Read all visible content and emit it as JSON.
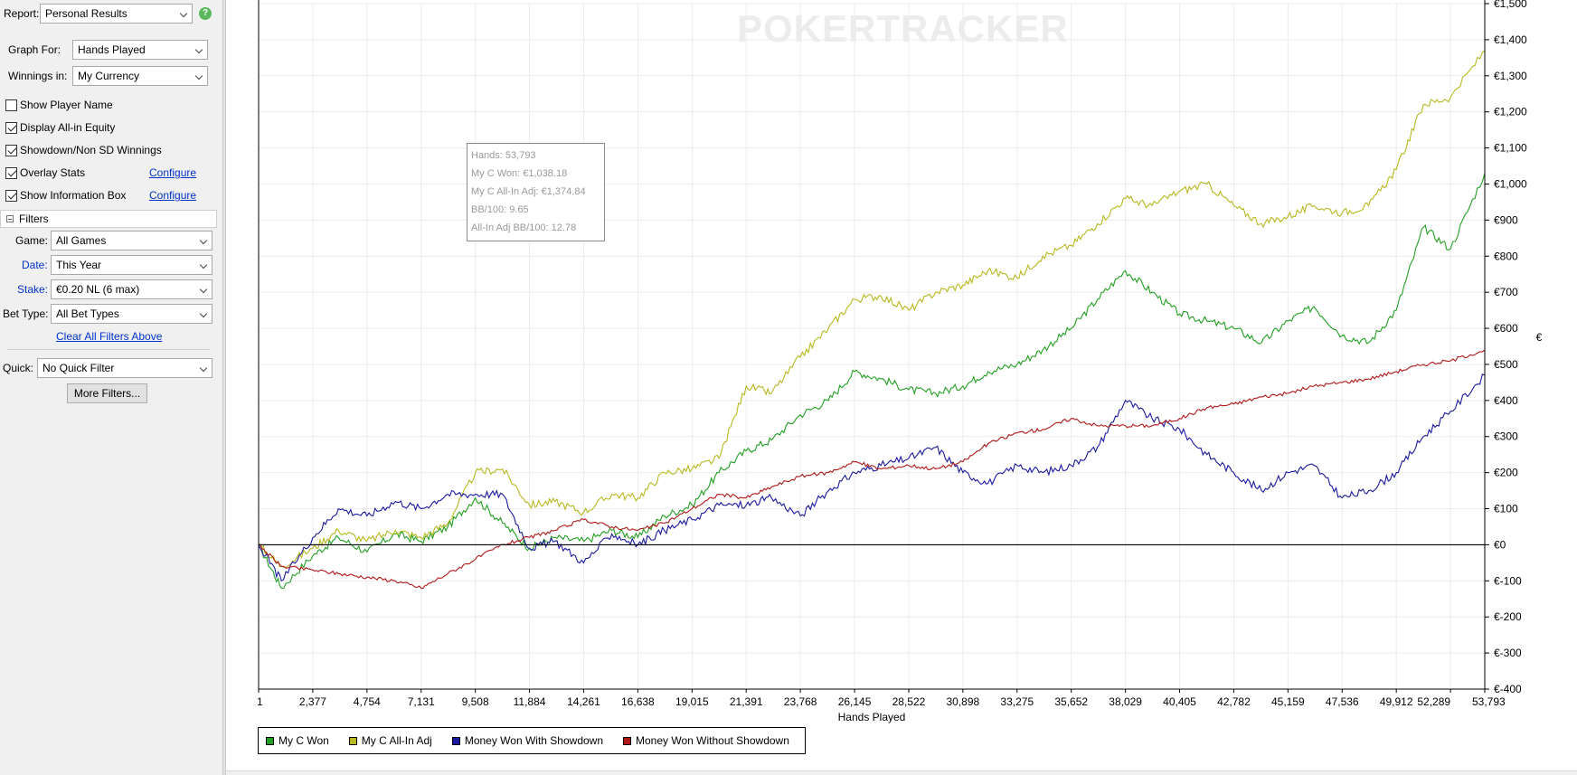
{
  "filters_panel": {
    "report_label": "Report:",
    "report_value": "Personal Results",
    "help_icon": "?",
    "graph_for_label": "Graph For:",
    "graph_for_value": "Hands Played",
    "winnings_in_label": "Winnings in:",
    "winnings_in_value": "My Currency",
    "checkboxes": [
      {
        "label": "Show Player Name",
        "checked": false
      },
      {
        "label": "Display All-in Equity",
        "checked": true
      },
      {
        "label": "Showdown/Non SD Winnings",
        "checked": true
      },
      {
        "label": "Overlay Stats",
        "checked": true
      },
      {
        "label": "Show Information Box",
        "checked": true
      }
    ],
    "configure_link": "Configure",
    "filters_header": "Filters",
    "game_label": "Game:",
    "game_value": "All Games",
    "date_label": "Date:",
    "date_value": "This Year",
    "stake_label": "Stake:",
    "stake_value": "€0.20 NL (6 max)",
    "bet_type_label": "Bet Type:",
    "bet_type_value": "All Bet Types",
    "clear_filters_link": "Clear All Filters Above",
    "quick_label": "Quick:",
    "quick_value": "No Quick Filter",
    "more_filters_button": "More Filters..."
  },
  "watermark": "POKERTRACKER",
  "info_box": {
    "hands": "Hands: 53,793",
    "won": "My C Won: €1,038.18",
    "allin_adj": "My C All-In Adj: €1,374.84",
    "bb100": "BB/100: 9.65",
    "allin_bb100": "All-In Adj BB/100: 12.78"
  },
  "chart_data": {
    "type": "line",
    "xlabel": "Hands Played",
    "ylabel": "€",
    "xlim": [
      1,
      53793
    ],
    "ylim": [
      -400,
      1500
    ],
    "x_ticks": [
      "1",
      "2,377",
      "4,754",
      "7,131",
      "9,508",
      "11,884",
      "14,261",
      "16,638",
      "19,015",
      "21,391",
      "23,768",
      "26,145",
      "28,522",
      "30,898",
      "33,275",
      "35,652",
      "38,029",
      "40,405",
      "42,782",
      "45,159",
      "47,536",
      "49,912",
      "52,289",
      "53,793"
    ],
    "y_ticks": [
      "€-400",
      "€-300",
      "€-200",
      "€-100",
      "€0",
      "€100",
      "€200",
      "€300",
      "€400",
      "€500",
      "€600",
      "€700",
      "€800",
      "€900",
      "€1,000",
      "€1,100",
      "€1,200",
      "€1,300",
      "€1,400",
      "€1,500"
    ],
    "grid": true,
    "legend_position": "bottom-left",
    "x": [
      1,
      1000,
      2377,
      3500,
      4754,
      6000,
      7131,
      8300,
      9508,
      10700,
      11884,
      13000,
      14261,
      15500,
      16638,
      17800,
      19015,
      20200,
      21391,
      22500,
      23768,
      25000,
      26145,
      27300,
      28522,
      29700,
      30898,
      32000,
      33275,
      34400,
      35652,
      36800,
      38029,
      39200,
      40405,
      41600,
      42782,
      44000,
      45159,
      46300,
      47536,
      48700,
      49912,
      51100,
      52289,
      53793
    ],
    "series": [
      {
        "name": "My C Won",
        "color": "#22a022",
        "values": [
          0,
          -120,
          -30,
          20,
          -20,
          30,
          10,
          50,
          130,
          60,
          -10,
          20,
          10,
          40,
          20,
          80,
          110,
          200,
          260,
          290,
          360,
          400,
          480,
          460,
          430,
          420,
          440,
          480,
          500,
          540,
          600,
          680,
          760,
          700,
          640,
          620,
          600,
          560,
          620,
          660,
          580,
          560,
          650,
          880,
          820,
          1030
        ]
      },
      {
        "name": "My C All-In Adj",
        "color": "#b8b820",
        "values": [
          0,
          -60,
          -10,
          40,
          10,
          40,
          20,
          60,
          200,
          210,
          110,
          120,
          90,
          140,
          130,
          200,
          210,
          240,
          440,
          420,
          520,
          600,
          680,
          690,
          650,
          700,
          720,
          760,
          740,
          800,
          830,
          890,
          960,
          940,
          980,
          1000,
          940,
          890,
          910,
          940,
          920,
          940,
          1040,
          1220,
          1240,
          1370
        ]
      },
      {
        "name": "Money Won With Showdown",
        "color": "#1a1aa0",
        "values": [
          0,
          -100,
          20,
          100,
          80,
          120,
          100,
          140,
          140,
          140,
          -10,
          10,
          -50,
          30,
          0,
          40,
          70,
          110,
          110,
          130,
          80,
          150,
          200,
          220,
          240,
          270,
          200,
          170,
          220,
          200,
          220,
          270,
          400,
          350,
          320,
          250,
          200,
          150,
          200,
          220,
          130,
          150,
          200,
          300,
          370,
          470
        ]
      },
      {
        "name": "Money Won Without Showdown",
        "color": "#b01818",
        "values": [
          0,
          -60,
          -70,
          -80,
          -90,
          -100,
          -120,
          -80,
          -40,
          0,
          20,
          40,
          70,
          50,
          40,
          60,
          100,
          140,
          130,
          160,
          190,
          200,
          230,
          210,
          220,
          210,
          230,
          280,
          310,
          320,
          350,
          330,
          330,
          330,
          350,
          380,
          390,
          410,
          420,
          440,
          450,
          460,
          480,
          500,
          510,
          540
        ]
      }
    ]
  }
}
